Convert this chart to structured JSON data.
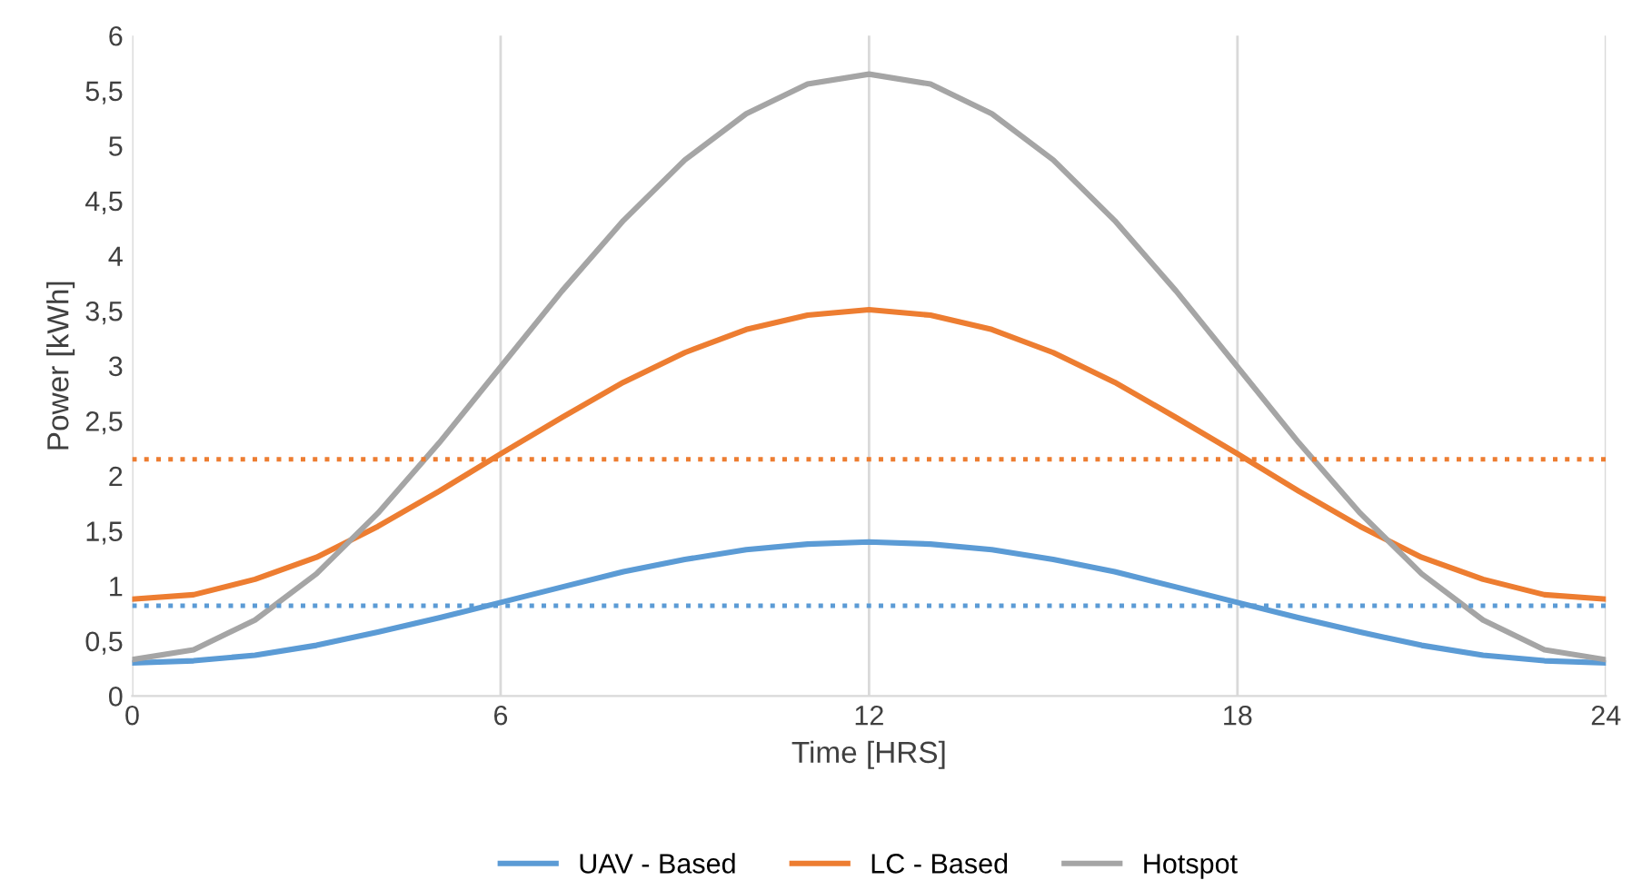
{
  "chart_data": {
    "type": "line",
    "xlabel": "Time [HRS]",
    "ylabel": "Power [kWh]",
    "x": [
      0,
      1,
      2,
      3,
      4,
      5,
      6,
      7,
      8,
      9,
      10,
      11,
      12,
      13,
      14,
      15,
      16,
      17,
      18,
      19,
      20,
      21,
      22,
      23,
      24
    ],
    "series": [
      {
        "name": "UAV - Based",
        "color": "#5b9bd5",
        "values": [
          0.3,
          0.32,
          0.37,
          0.46,
          0.58,
          0.71,
          0.85,
          0.99,
          1.13,
          1.24,
          1.33,
          1.38,
          1.4,
          1.38,
          1.33,
          1.24,
          1.13,
          0.99,
          0.85,
          0.71,
          0.58,
          0.46,
          0.37,
          0.32,
          0.3
        ]
      },
      {
        "name": "LC - Based",
        "color": "#ed7d31",
        "values": [
          0.88,
          0.92,
          1.06,
          1.26,
          1.54,
          1.86,
          2.2,
          2.53,
          2.85,
          3.12,
          3.33,
          3.46,
          3.51,
          3.46,
          3.33,
          3.12,
          2.85,
          2.53,
          2.2,
          1.86,
          1.54,
          1.26,
          1.06,
          0.92,
          0.88
        ]
      },
      {
        "name": "Hotspot",
        "color": "#a5a5a5",
        "values": [
          0.33,
          0.42,
          0.69,
          1.11,
          1.66,
          2.3,
          2.99,
          3.68,
          4.32,
          4.87,
          5.29,
          5.56,
          5.65,
          5.56,
          5.29,
          4.87,
          4.32,
          3.68,
          2.99,
          2.3,
          1.66,
          1.11,
          0.69,
          0.42,
          0.33
        ]
      }
    ],
    "ref_lines": [
      {
        "axis": "y",
        "value": 2.15,
        "color": "#ed7d31",
        "line_style": "dotted"
      },
      {
        "axis": "y",
        "value": 0.82,
        "color": "#5b9bd5",
        "line_style": "dotted"
      }
    ],
    "xlim": [
      0,
      24
    ],
    "xticks": [
      0,
      6,
      12,
      18,
      24
    ],
    "ylim": [
      0,
      6
    ],
    "yticks": [
      0,
      {
        "value": 0.5,
        "label": "0,5"
      },
      1,
      {
        "value": 1.5,
        "label": "1,5"
      },
      2,
      {
        "value": 2.5,
        "label": "2,5"
      },
      3,
      {
        "value": 3.5,
        "label": "3,5"
      },
      4,
      {
        "value": 4.5,
        "label": "4,5"
      },
      5,
      {
        "value": 5.5,
        "label": "5,5"
      },
      6
    ],
    "grid": "x",
    "legend": "bottom",
    "marker": "none",
    "line_style": "solid"
  }
}
